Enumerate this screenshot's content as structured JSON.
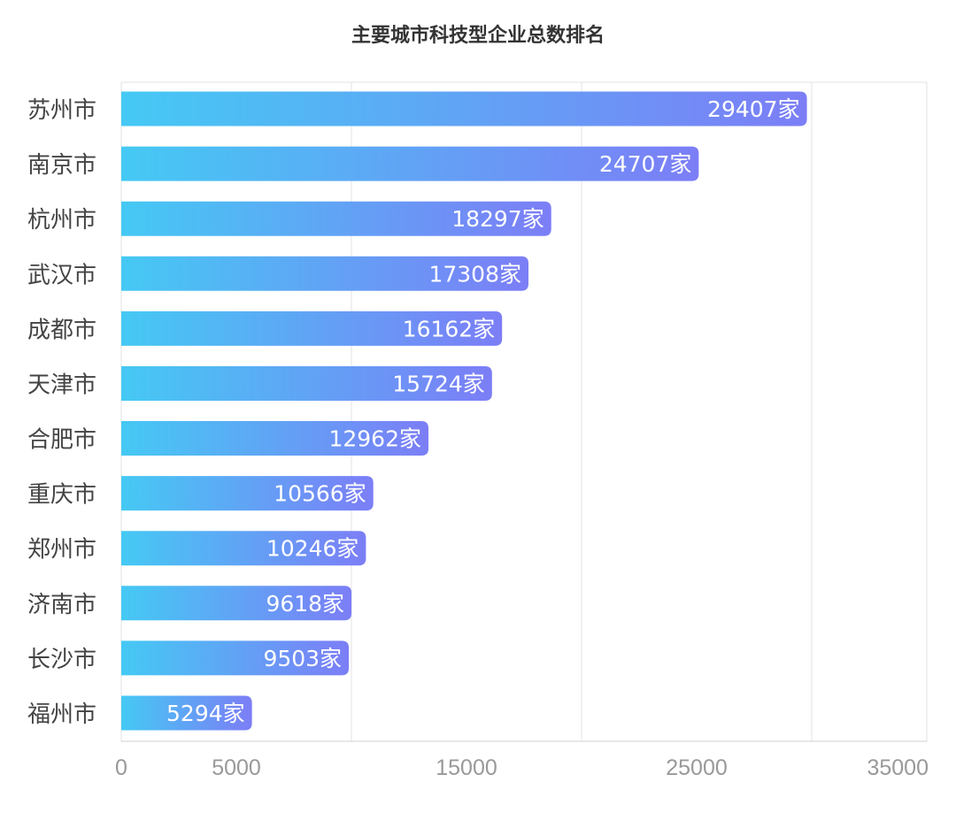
{
  "chart_data": {
    "type": "bar",
    "orientation": "horizontal",
    "title": "主要城市科技型企业总数排名",
    "categories": [
      "苏州市",
      "南京市",
      "杭州市",
      "武汉市",
      "成都市",
      "天津市",
      "合肥市",
      "重庆市",
      "郑州市",
      "济南市",
      "长沙市",
      "福州市"
    ],
    "values": [
      29407,
      24707,
      18297,
      17308,
      16162,
      15724,
      12962,
      10566,
      10246,
      9618,
      9503,
      5294
    ],
    "value_suffix": "家",
    "xlim": [
      0,
      35000
    ],
    "x_tick_labels": [
      "0",
      "5000",
      "15000",
      "25000",
      "35000"
    ],
    "x_tick_values": [
      0,
      5000,
      15000,
      25000,
      35000
    ],
    "gridlines": [
      0,
      10000,
      20000,
      30000,
      35000
    ],
    "grid": true,
    "colors": {
      "gradient_start": "#45c9f4",
      "gradient_end": "#7c7ef6",
      "axis_text": "#999999",
      "category_text": "#444444",
      "grid": "#e3e3e3"
    }
  }
}
